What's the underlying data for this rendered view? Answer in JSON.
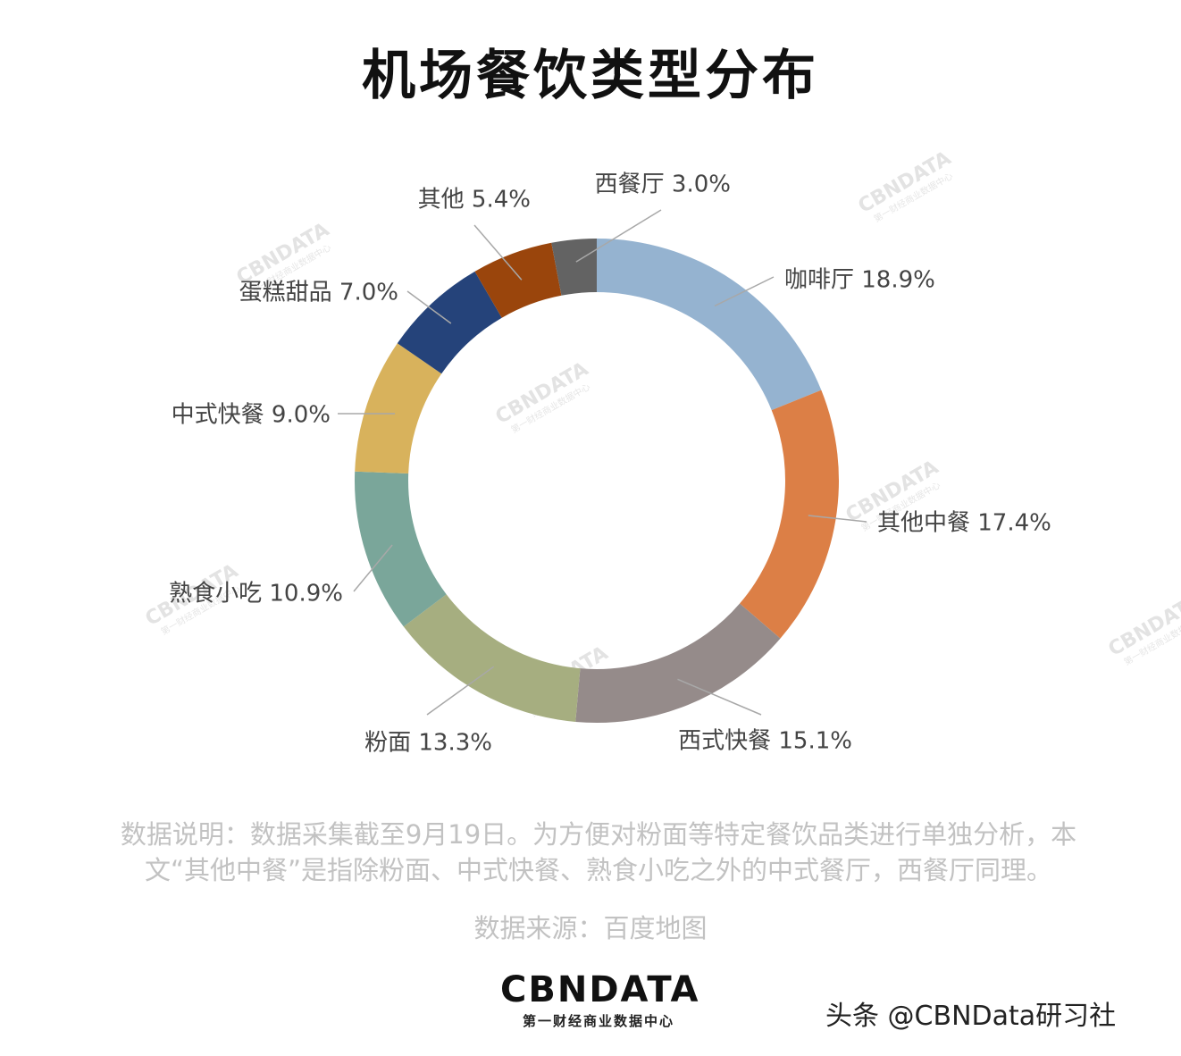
{
  "title": "机场餐饮类型分布",
  "chart_data": {
    "type": "pie",
    "title": "机场餐饮类型分布",
    "categories": [
      "咖啡厅",
      "其他中餐",
      "西式快餐",
      "粉面",
      "熟食小吃",
      "中式快餐",
      "蛋糕甜品",
      "其他",
      "西餐厅"
    ],
    "values": [
      18.9,
      17.4,
      15.1,
      13.3,
      10.9,
      9.0,
      7.0,
      5.4,
      3.0
    ],
    "labels": [
      "咖啡厅 18.9%",
      "其他中餐 17.4%",
      "西式快餐 15.1%",
      "粉面 13.3%",
      "熟食小吃 10.9%",
      "中式快餐 9.0%",
      "蛋糕甜品 7.0%",
      "其他 5.4%",
      "西餐厅 3.0%"
    ],
    "colors": [
      "#95b3d0",
      "#dc7f46",
      "#958b8a",
      "#a6ae80",
      "#7aa69a",
      "#d8b25c",
      "#25437a",
      "#9a450c",
      "#636363"
    ],
    "donut": true,
    "start": "top",
    "direction": "clockwise",
    "legend": "none"
  },
  "note": {
    "line1": "数据说明：数据采集截至9月19日。为方便对粉面等特定餐饮品类进行单独分析，本",
    "line2": "文“其他中餐”是指除粉面、中式快餐、熟食小吃之外的中式餐厅，西餐厅同理。"
  },
  "source": "数据来源：百度地图",
  "logo": {
    "main": "CBNDATA",
    "sub": "第一财经商业数据中心"
  },
  "watermark": {
    "main": "CBNDATA",
    "sub": "第一财经商业数据中心"
  },
  "byline": "头条 @CBNData研习社"
}
